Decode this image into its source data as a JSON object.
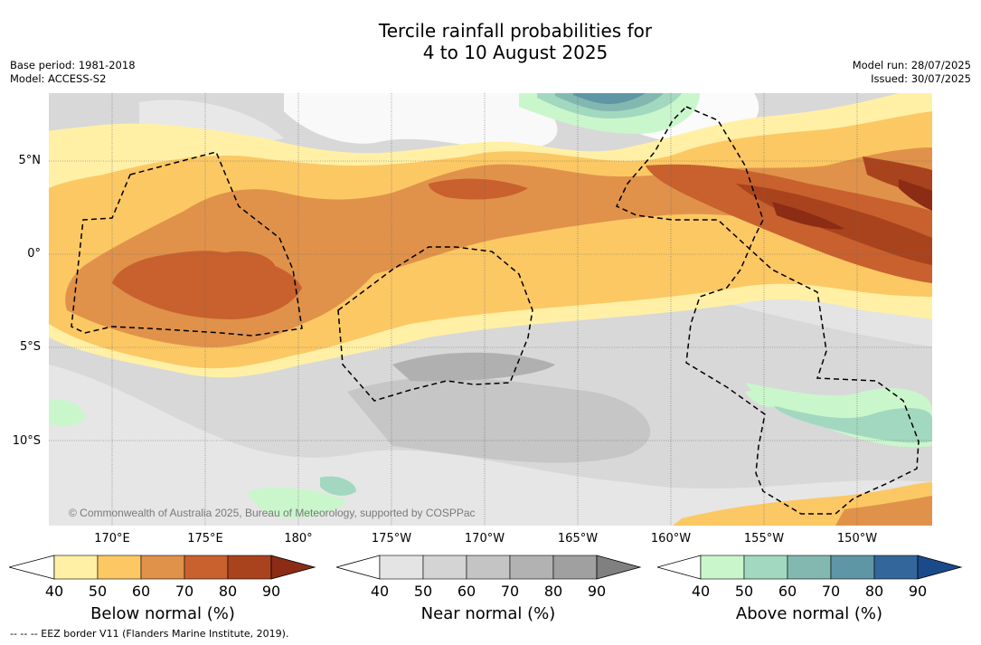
{
  "title": {
    "line1": "Tercile rainfall probabilities for",
    "line2": "4 to 10 August 2025"
  },
  "meta": {
    "base_period": "Base period: 1981-2018",
    "model": "Model: ACCESS-S2",
    "model_run": "Model run: 28/07/2025",
    "issued": "Issued: 30/07/2025"
  },
  "map": {
    "lat_labels": [
      "5°N",
      "0°",
      "5°S",
      "10°S"
    ],
    "lon_labels": [
      "170°E",
      "175°E",
      "180°",
      "175°W",
      "170°W",
      "165°W",
      "160°W",
      "155°W",
      "150°W"
    ],
    "copyright": "© Commonwealth of Australia 2025, Bureau of Meteorology, supported by COSPPac",
    "colors": {
      "below": [
        "#fff0a6",
        "#fcc864",
        "#e0924a",
        "#c8612e",
        "#a9431e",
        "#8c2c15"
      ],
      "near": [
        "#e4e4e4",
        "#d4d4d4",
        "#c4c4c4",
        "#b2b2b2",
        "#a0a0a0",
        "#808080"
      ],
      "above": [
        "#caf6cc",
        "#a2d8bf",
        "#82b8b0",
        "#5e96a6",
        "#33669a",
        "#1a4a8a"
      ]
    }
  },
  "legend": {
    "below": {
      "label": "Below normal (%)",
      "ticks": [
        "40",
        "50",
        "60",
        "70",
        "80",
        "90"
      ]
    },
    "near": {
      "label": "Near normal (%)",
      "ticks": [
        "40",
        "50",
        "60",
        "70",
        "80",
        "90"
      ]
    },
    "above": {
      "label": "Above normal (%)",
      "ticks": [
        "40",
        "50",
        "60",
        "70",
        "80",
        "90"
      ]
    }
  },
  "footnote": "-- -- -- EEZ border V11 (Flanders Marine Institute, 2019)."
}
